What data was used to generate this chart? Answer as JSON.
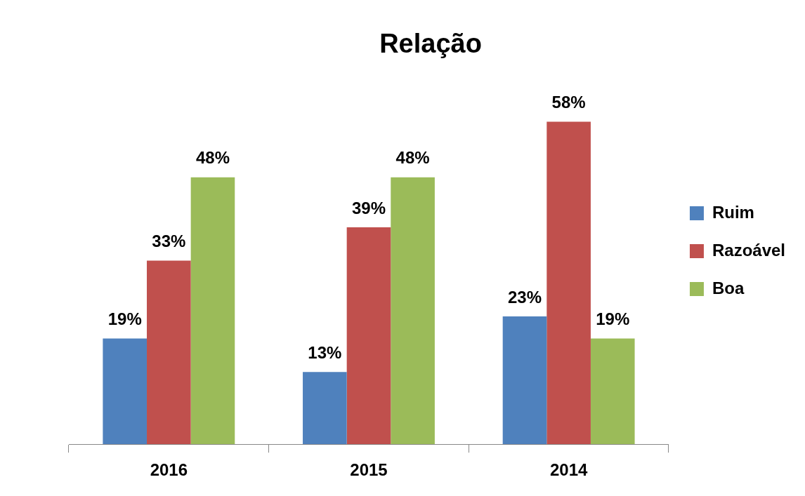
{
  "chart_data": {
    "type": "bar",
    "title": "Relação",
    "categories": [
      "2016",
      "2015",
      "2014"
    ],
    "series": [
      {
        "name": "Ruim",
        "color": "#4f81bd",
        "values": [
          19,
          13,
          23
        ],
        "value_labels": [
          "19%",
          "13%",
          "23%"
        ]
      },
      {
        "name": "Razoável",
        "color": "#c0504d",
        "values": [
          33,
          39,
          58
        ],
        "value_labels": [
          "33%",
          "39%",
          "58%"
        ]
      },
      {
        "name": "Boa",
        "color": "#9bbb59",
        "values": [
          48,
          48,
          19
        ],
        "value_labels": [
          "48%",
          "48%",
          "19%"
        ]
      }
    ],
    "legend": "right",
    "grid": false
  }
}
